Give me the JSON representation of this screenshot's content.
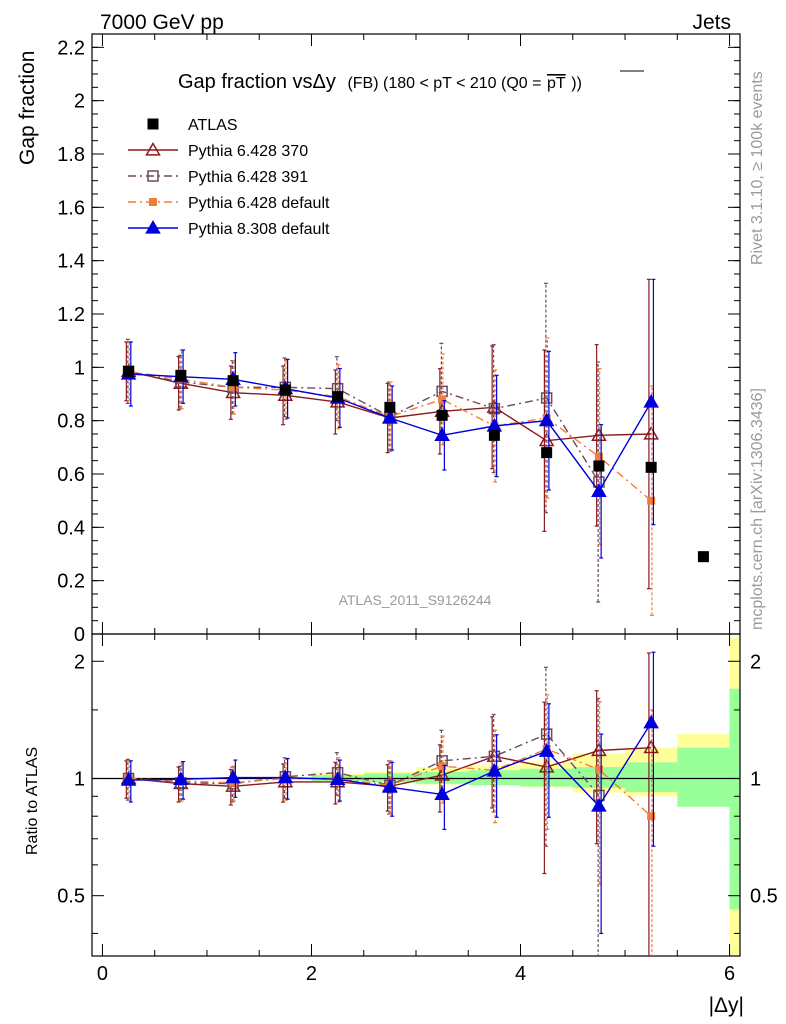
{
  "header": {
    "energy_label": "7000 GeV pp",
    "category_label": "Jets"
  },
  "side_texts": {
    "rivet_label": "Rivet 3.1.10, ≥ 100k events",
    "mcplots_label": "mcplots.cern.ch [arXiv:1306.3436]"
  },
  "analysis_label": "ATLAS_2011_S9126244",
  "chart_data": [
    {
      "type": "scatter",
      "title_main": "Gap fraction vsΔy",
      "title_sub": "(FB) (180 < pT < 210 (Q0 =",
      "title_overline": "pT",
      "title_end": "))",
      "ylabel": "Gap fraction",
      "xlim": [
        -0.1,
        6.1
      ],
      "ylim": [
        0,
        2.25
      ],
      "y_ticks": [
        0,
        0.2,
        0.4,
        0.6,
        0.8,
        1,
        1.2,
        1.4,
        1.6,
        1.8,
        2,
        2.2
      ],
      "y_tick_labels": [
        "0",
        "0.2",
        "0.4",
        "0.6",
        "0.8",
        "1",
        "1.2",
        "1.4",
        "1.6",
        "1.8",
        "2",
        "2.2"
      ],
      "legend": {
        "position": "top-left"
      },
      "series": [
        {
          "name": "ATLAS",
          "color": "#000000",
          "marker": "filled-square",
          "x": [
            0.25,
            0.75,
            1.25,
            1.75,
            2.25,
            2.75,
            3.25,
            3.75,
            4.25,
            4.75,
            5.25,
            5.75
          ],
          "y": [
            0.985,
            0.97,
            0.95,
            0.915,
            0.89,
            0.85,
            0.82,
            0.745,
            0.68,
            0.63,
            0.625,
            0.29
          ],
          "yerr": [
            0,
            0,
            0,
            0,
            0,
            0,
            0,
            0,
            0,
            0,
            0,
            0
          ]
        },
        {
          "name": "Pythia 6.428 370",
          "color": "#8b1a1a",
          "marker": "open-triangle",
          "line": "solid",
          "x": [
            0.25,
            0.75,
            1.25,
            1.75,
            2.25,
            2.75,
            3.25,
            3.75,
            4.25,
            4.75,
            5.25
          ],
          "y": [
            0.985,
            0.94,
            0.905,
            0.895,
            0.87,
            0.81,
            0.835,
            0.85,
            0.725,
            0.745,
            0.75
          ],
          "yerr": [
            0.11,
            0.1,
            0.1,
            0.11,
            0.12,
            0.13,
            0.16,
            0.23,
            0.34,
            0.34,
            0.58
          ]
        },
        {
          "name": "Pythia 6.428 391",
          "color": "#6e4a5a",
          "marker": "open-square",
          "line": "dash-dot",
          "x": [
            0.25,
            0.75,
            1.25,
            1.75,
            2.25,
            2.75,
            3.25,
            3.75,
            4.25,
            4.75
          ],
          "y": [
            0.985,
            0.945,
            0.925,
            0.925,
            0.92,
            0.815,
            0.91,
            0.845,
            0.885,
            0.57
          ],
          "yerr": [
            0.12,
            0.1,
            0.1,
            0.11,
            0.12,
            0.13,
            0.18,
            0.24,
            0.43,
            0.45
          ]
        },
        {
          "name": "Pythia 6.428 default",
          "color": "#f07d3a",
          "marker": "filled-square-small",
          "line": "dash-dot",
          "x": [
            0.25,
            0.75,
            1.25,
            1.75,
            2.25,
            2.75,
            3.25,
            3.75,
            4.25,
            4.75,
            5.25
          ],
          "y": [
            0.985,
            0.955,
            0.925,
            0.915,
            0.89,
            0.815,
            0.88,
            0.78,
            0.81,
            0.665,
            0.5
          ],
          "yerr": [
            0.11,
            0.11,
            0.1,
            0.11,
            0.12,
            0.13,
            0.17,
            0.21,
            0.3,
            0.33,
            0.43
          ]
        },
        {
          "name": "Pythia 8.308 default",
          "color": "#0000dd",
          "marker": "filled-triangle",
          "line": "solid",
          "x": [
            0.25,
            0.75,
            1.25,
            1.75,
            2.25,
            2.75,
            3.25,
            3.75,
            4.25,
            4.75,
            5.25
          ],
          "y": [
            0.975,
            0.965,
            0.955,
            0.92,
            0.885,
            0.81,
            0.745,
            0.78,
            0.8,
            0.535,
            0.87
          ],
          "yerr": [
            0.12,
            0.1,
            0.1,
            0.11,
            0.11,
            0.12,
            0.13,
            0.19,
            0.26,
            0.25,
            0.46
          ]
        }
      ]
    },
    {
      "type": "scatter",
      "ylabel": "Ratio to ATLAS",
      "xlabel": "|Δy|",
      "xlim": [
        -0.1,
        6.1
      ],
      "ylim": [
        0.35,
        2.35
      ],
      "x_ticks": [
        0,
        2,
        4,
        6
      ],
      "x_tick_labels": [
        "0",
        "2",
        "4",
        "6"
      ],
      "y_ticks": [
        0.5,
        1,
        2
      ],
      "y_tick_labels": [
        "0.5",
        "1",
        "2"
      ],
      "reference_bands": {
        "x_edges": [
          2.0,
          2.5,
          3.0,
          3.5,
          4.0,
          4.5,
          5.0,
          5.5,
          6.0
        ],
        "stat": [
          0.02,
          0.03,
          0.04,
          0.05,
          0.06,
          0.07,
          0.1,
          0.2,
          0.7
        ],
        "total": [
          0.03,
          0.04,
          0.07,
          0.08,
          0.1,
          0.16,
          0.2,
          0.3,
          1.3
        ],
        "stat_color": "#99ff99",
        "total_color": "#ffff99"
      },
      "series": [
        {
          "name": "Pythia 6.428 370",
          "color": "#8b1a1a",
          "marker": "open-triangle",
          "line": "solid",
          "x": [
            0.25,
            0.75,
            1.25,
            1.75,
            2.25,
            2.75,
            3.25,
            3.75,
            4.25,
            4.75,
            5.25
          ],
          "y": [
            1.0,
            0.97,
            0.955,
            0.98,
            0.98,
            0.955,
            1.02,
            1.14,
            1.07,
            1.18,
            1.2
          ],
          "yerr": [
            0.11,
            0.1,
            0.1,
            0.11,
            0.12,
            0.13,
            0.2,
            0.3,
            0.5,
            0.5,
            0.9
          ]
        },
        {
          "name": "Pythia 6.428 391",
          "color": "#6e4a5a",
          "marker": "open-square",
          "line": "dash-dot",
          "x": [
            0.25,
            0.75,
            1.25,
            1.75,
            2.25,
            2.75,
            3.25,
            3.75,
            4.25,
            4.75
          ],
          "y": [
            1.0,
            0.975,
            0.97,
            1.01,
            1.035,
            0.96,
            1.11,
            1.14,
            1.3,
            0.905
          ],
          "yerr": [
            0.12,
            0.1,
            0.1,
            0.12,
            0.13,
            0.15,
            0.22,
            0.32,
            0.63,
            0.7
          ]
        },
        {
          "name": "Pythia 6.428 default",
          "color": "#f07d3a",
          "marker": "filled-square-small",
          "line": "dash-dot",
          "x": [
            0.25,
            0.75,
            1.25,
            1.75,
            2.25,
            2.75,
            3.25,
            3.75,
            4.25,
            4.75,
            5.25
          ],
          "y": [
            1.0,
            0.985,
            0.975,
            1.0,
            1.0,
            0.96,
            1.075,
            1.05,
            1.19,
            1.055,
            0.8
          ],
          "yerr": [
            0.11,
            0.11,
            0.1,
            0.12,
            0.13,
            0.15,
            0.21,
            0.28,
            0.45,
            0.52,
            0.7
          ]
        },
        {
          "name": "Pythia 8.308 default",
          "color": "#0000dd",
          "marker": "filled-triangle",
          "line": "solid",
          "x": [
            0.25,
            0.75,
            1.25,
            1.75,
            2.25,
            2.75,
            3.25,
            3.75,
            4.25,
            4.75,
            5.25
          ],
          "y": [
            0.99,
            0.995,
            1.005,
            1.005,
            0.995,
            0.95,
            0.91,
            1.045,
            1.175,
            0.85,
            1.39
          ],
          "yerr": [
            0.12,
            0.11,
            0.11,
            0.12,
            0.12,
            0.15,
            0.17,
            0.25,
            0.38,
            0.45,
            0.72
          ]
        }
      ]
    }
  ]
}
